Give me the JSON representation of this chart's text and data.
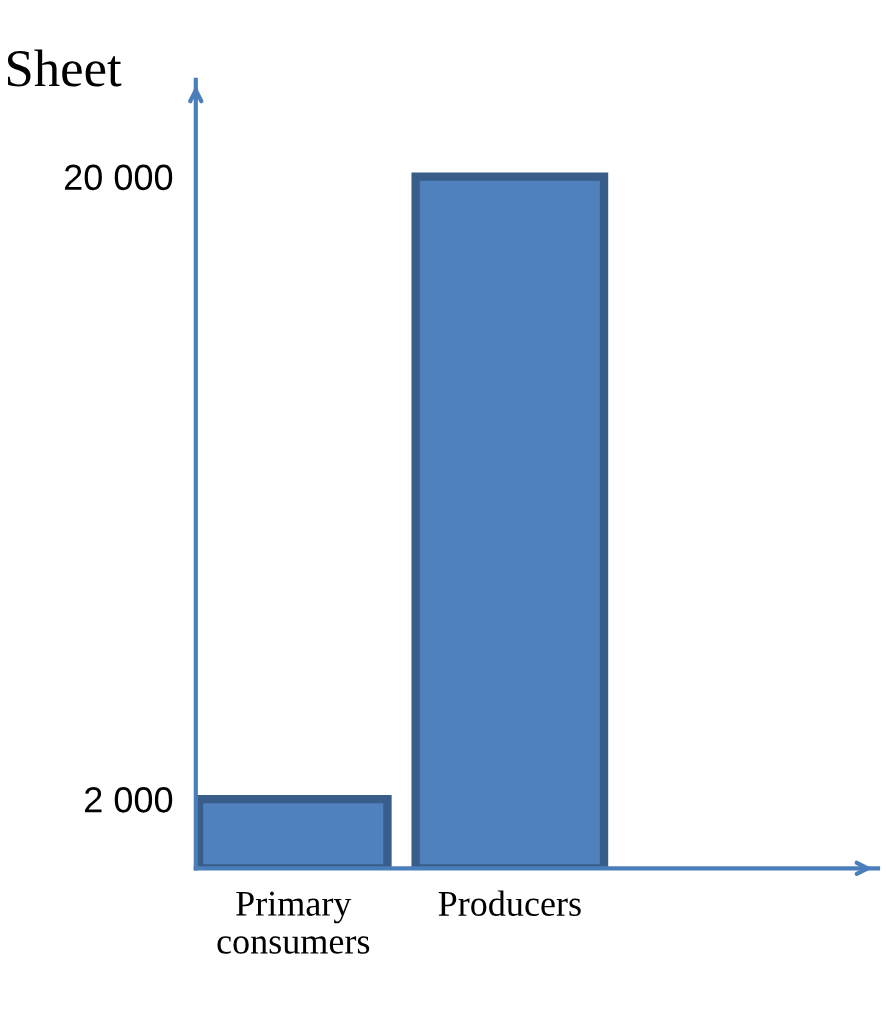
{
  "chart_data": {
    "type": "bar",
    "ylabel": "Sheet",
    "categories": [
      "Primary\nconsumers",
      "Producers"
    ],
    "values": [
      2000,
      20000
    ],
    "color": "#4f81bd",
    "ylim": [
      0,
      22800
    ],
    "yticks": [
      {
        "value": 2000,
        "label": "2 000"
      },
      {
        "value": 20000,
        "label": "20 000"
      }
    ],
    "grid": false
  }
}
